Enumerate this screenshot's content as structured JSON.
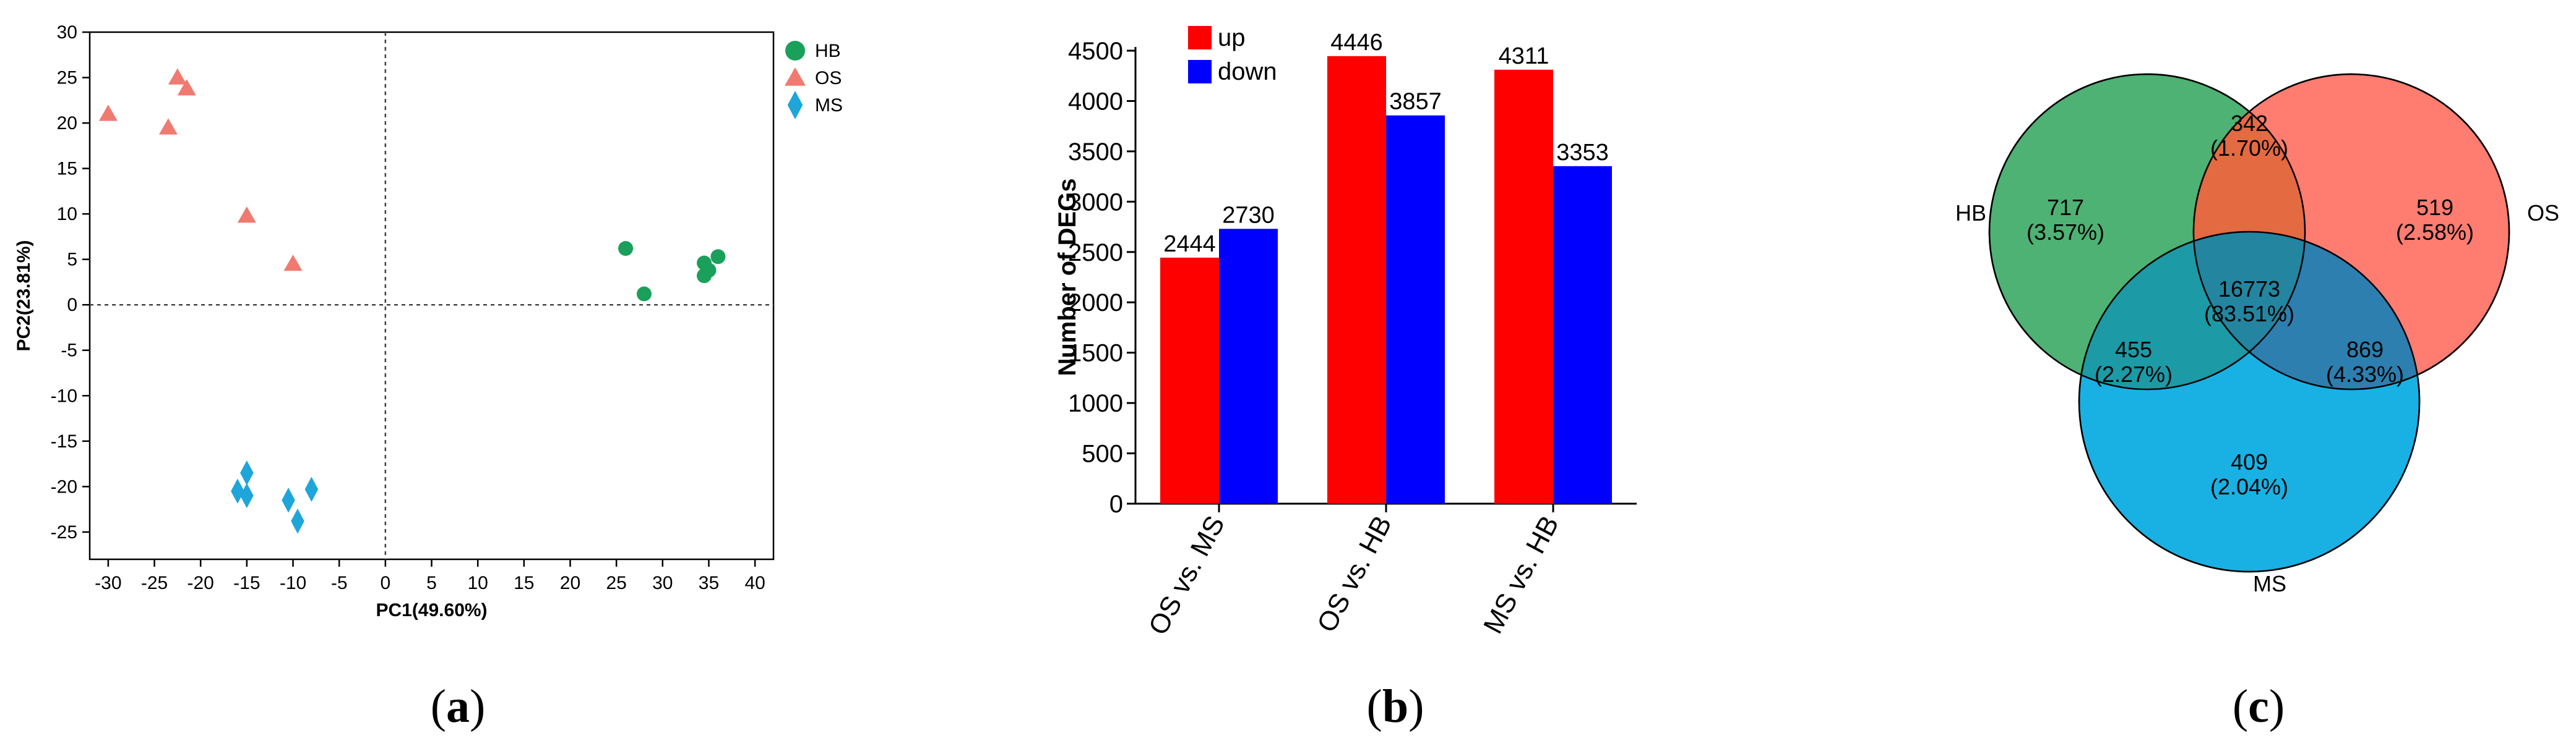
{
  "chart_data": [
    {
      "type": "scatter",
      "xlabel": "PC1(49.60%)",
      "ylabel": "PC2(23.81%)",
      "xlim": [
        -32,
        42
      ],
      "ylim": [
        -28,
        30
      ],
      "xticks": [
        -30,
        -25,
        -20,
        -15,
        -10,
        -5,
        0,
        5,
        10,
        15,
        20,
        25,
        30,
        35,
        40
      ],
      "yticks": [
        -25,
        -20,
        -15,
        -10,
        -5,
        0,
        5,
        10,
        15,
        20,
        25,
        30
      ],
      "reference_lines": {
        "x": 0,
        "y": 0,
        "style": "dotted"
      },
      "legend_position": "top-right",
      "series": [
        {
          "name": "HB",
          "marker": "circle",
          "color": "#1aa05a",
          "points": [
            [
              26,
              6.2
            ],
            [
              28,
              1.2
            ],
            [
              34.5,
              4.6
            ],
            [
              34.5,
              3.2
            ],
            [
              35,
              3.8
            ],
            [
              36,
              5.3
            ]
          ]
        },
        {
          "name": "OS",
          "marker": "triangle",
          "color": "#f07a70",
          "points": [
            [
              -30,
              21
            ],
            [
              -23.5,
              19.5
            ],
            [
              -22.5,
              25
            ],
            [
              -21.5,
              23.8
            ],
            [
              -15,
              9.8
            ],
            [
              -10,
              4.5
            ]
          ]
        },
        {
          "name": "MS",
          "marker": "diamond",
          "color": "#1ea6da",
          "points": [
            [
              -16,
              -20.5
            ],
            [
              -15,
              -18.5
            ],
            [
              -15,
              -21
            ],
            [
              -10.5,
              -21.5
            ],
            [
              -9.5,
              -23.8
            ],
            [
              -8,
              -20.3
            ]
          ]
        }
      ]
    },
    {
      "type": "bar",
      "ylabel": "Number of DEGs",
      "ylim": [
        0,
        4500
      ],
      "yticks": [
        0,
        500,
        1000,
        1500,
        2000,
        2500,
        3000,
        3500,
        4000,
        4500
      ],
      "categories": [
        "OS  vs. MS",
        "OS  vs. HB",
        "MS  vs. HB"
      ],
      "legend_position": "top-left",
      "series": [
        {
          "name": "up",
          "color": "#ff0000",
          "values": [
            2444,
            4446,
            4311
          ]
        },
        {
          "name": "down",
          "color": "#0000ff",
          "values": [
            2730,
            3857,
            3353
          ]
        }
      ]
    },
    {
      "type": "venn",
      "sets": [
        {
          "name": "HB",
          "color": "#3aaa64"
        },
        {
          "name": "OS",
          "color": "#ff6e62"
        },
        {
          "name": "MS",
          "color": "#00a8e0"
        }
      ],
      "regions": [
        {
          "sets": [
            "HB"
          ],
          "count": "717",
          "percent": "(3.57%)"
        },
        {
          "sets": [
            "OS"
          ],
          "count": "519",
          "percent": "(2.58%)"
        },
        {
          "sets": [
            "MS"
          ],
          "count": "409",
          "percent": "(2.04%)"
        },
        {
          "sets": [
            "HB",
            "OS"
          ],
          "count": "342",
          "percent": "(1.70%)"
        },
        {
          "sets": [
            "HB",
            "MS"
          ],
          "count": "455",
          "percent": "(2.27%)"
        },
        {
          "sets": [
            "OS",
            "MS"
          ],
          "count": "869",
          "percent": "(4.33%)"
        },
        {
          "sets": [
            "HB",
            "OS",
            "MS"
          ],
          "count": "16773",
          "percent": "(83.51%)"
        }
      ]
    }
  ],
  "panel_labels": [
    "(a)",
    "(b)",
    "(c)"
  ]
}
